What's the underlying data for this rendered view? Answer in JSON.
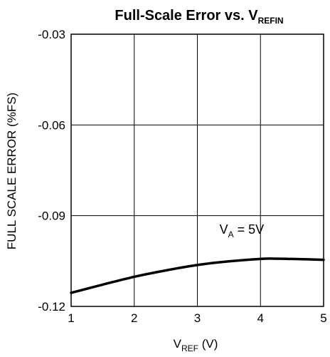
{
  "chart_data": {
    "type": "line",
    "title": {
      "main": "Full-Scale Error vs. V",
      "sub": "REFIN"
    },
    "xlabel": {
      "main": "V",
      "sub": "REF",
      "suffix": " (V)"
    },
    "ylabel": "FULL SCALE ERROR (%FS)",
    "xlim": [
      1,
      5
    ],
    "ylim": [
      -0.12,
      -0.03
    ],
    "x_ticks": [
      1,
      2,
      3,
      4,
      5
    ],
    "x_tick_labels": [
      "1",
      "2",
      "3",
      "4",
      "5"
    ],
    "y_ticks": [
      -0.03,
      -0.06,
      -0.09,
      -0.12
    ],
    "y_tick_labels": [
      "-0.03",
      "-0.06",
      "-0.09",
      "-0.12"
    ],
    "grid": true,
    "legend": "none",
    "annotation": {
      "main": "V",
      "sub": "A",
      "suffix": " = 5V",
      "x": 3.35,
      "y": -0.096
    },
    "series": [
      {
        "color": "#000000",
        "x": [
          1.0,
          1.5,
          2.0,
          2.5,
          3.0,
          3.5,
          4.0,
          4.2,
          4.5,
          5.0
        ],
        "y": [
          -0.1155,
          -0.1128,
          -0.1102,
          -0.1081,
          -0.1063,
          -0.1051,
          -0.1043,
          -0.1042,
          -0.1043,
          -0.1046
        ]
      }
    ]
  }
}
